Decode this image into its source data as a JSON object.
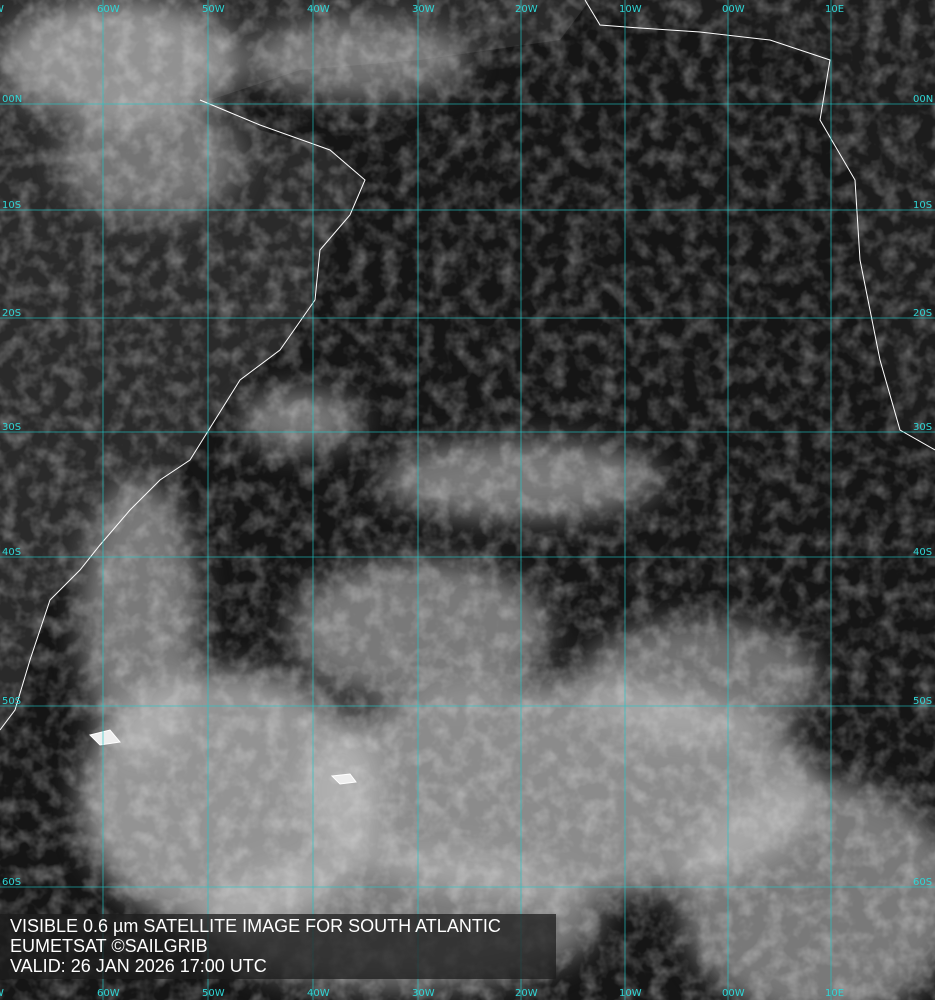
{
  "map": {
    "type": "satellite visible imagery",
    "colors": {
      "grid": "#1fc8c8",
      "coast": "#ffffff",
      "ocean": "#141414",
      "cloud": "#d8d8d8"
    },
    "longitude_labels": [
      "W",
      "60W",
      "50W",
      "40W",
      "30W",
      "20W",
      "10W",
      "00W",
      "10E"
    ],
    "latitude_labels": [
      "00N",
      "10S",
      "20S",
      "30S",
      "40S",
      "50S",
      "60S"
    ]
  },
  "caption": {
    "line1": "VISIBLE 0.6 µm SATELLITE IMAGE FOR SOUTH ATLANTIC",
    "line2": "EUMETSAT ©SAILGRIB",
    "line3": "VALID:  26 JAN 2026 17:00 UTC"
  }
}
